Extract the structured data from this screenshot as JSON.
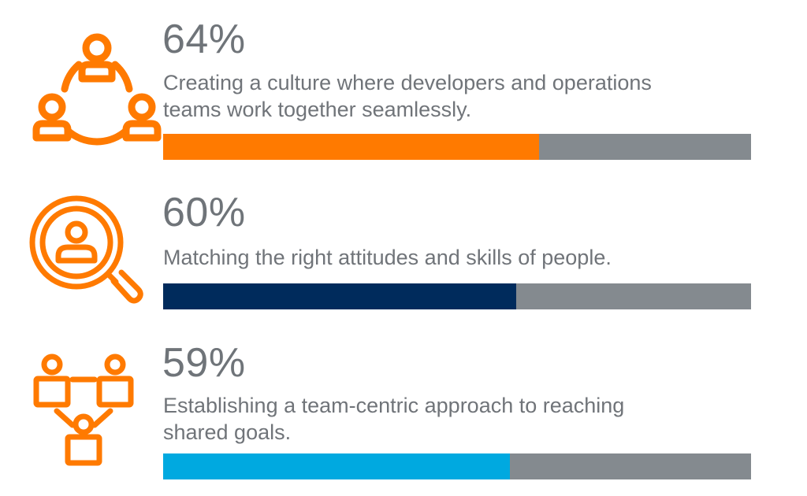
{
  "chart_data": {
    "type": "bar",
    "orientation": "horizontal",
    "values": [
      64,
      60,
      59
    ],
    "unit": "%",
    "xlim": [
      0,
      100
    ]
  },
  "stats": [
    {
      "percent_label": "64%",
      "value": 64,
      "description_lines": [
        "Creating a culture where developers and operations",
        "teams work together seamlessly."
      ],
      "bar_color": "#ff7a00",
      "icon": "team-collaboration-icon"
    },
    {
      "percent_label": "60%",
      "value": 60,
      "description_lines": [
        "Matching the right attitudes and skills of people."
      ],
      "bar_color": "#002b5c",
      "icon": "talent-search-icon"
    },
    {
      "percent_label": "59%",
      "value": 59,
      "description_lines": [
        "Establishing a team-centric approach to reaching",
        "shared goals."
      ],
      "bar_color": "#00a9e0",
      "icon": "team-structure-icon"
    }
  ],
  "colors": {
    "icon_color": "#ff7a00",
    "bar_track": "#848a8f",
    "text": "#707479"
  }
}
